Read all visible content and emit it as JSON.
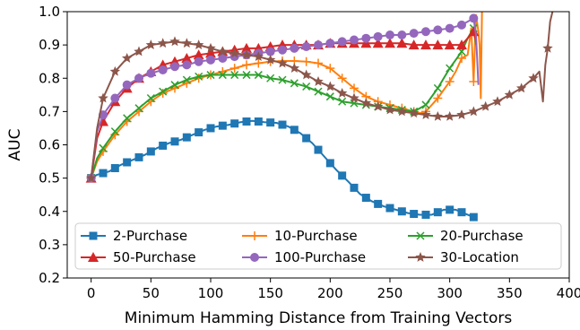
{
  "chart_data": {
    "type": "line",
    "title": "",
    "xlabel": "Minimum Hamming Distance from Training Vectors",
    "ylabel": "AUC",
    "xlim": [
      -20,
      400
    ],
    "ylim": [
      0.2,
      1.0
    ],
    "xticks": [
      0,
      50,
      100,
      150,
      200,
      250,
      300,
      350,
      400
    ],
    "yticks": [
      0.2,
      0.3,
      0.4,
      0.5,
      0.6,
      0.7,
      0.8,
      0.9,
      1.0
    ],
    "grid": false,
    "legend": {
      "placement": "lower-center",
      "columns": 3
    },
    "series": [
      {
        "name": "2-Purchase",
        "color": "#1f77b4",
        "marker": "square",
        "points": [
          [
            0,
            0.5
          ],
          [
            5,
            0.51
          ],
          [
            15,
            0.52
          ],
          [
            25,
            0.54
          ],
          [
            35,
            0.555
          ],
          [
            45,
            0.57
          ],
          [
            55,
            0.59
          ],
          [
            65,
            0.605
          ],
          [
            75,
            0.615
          ],
          [
            85,
            0.63
          ],
          [
            95,
            0.645
          ],
          [
            105,
            0.655
          ],
          [
            115,
            0.66
          ],
          [
            125,
            0.668
          ],
          [
            135,
            0.672
          ],
          [
            145,
            0.668
          ],
          [
            155,
            0.666
          ],
          [
            165,
            0.655
          ],
          [
            175,
            0.635
          ],
          [
            185,
            0.605
          ],
          [
            195,
            0.565
          ],
          [
            205,
            0.525
          ],
          [
            215,
            0.49
          ],
          [
            225,
            0.452
          ],
          [
            235,
            0.43
          ],
          [
            245,
            0.415
          ],
          [
            255,
            0.405
          ],
          [
            265,
            0.395
          ],
          [
            275,
            0.39
          ],
          [
            285,
            0.39
          ],
          [
            295,
            0.405
          ],
          [
            305,
            0.405
          ],
          [
            315,
            0.39
          ],
          [
            322,
            0.38
          ]
        ],
        "marker_x": [
          0,
          10,
          20,
          30,
          40,
          50,
          60,
          70,
          80,
          90,
          100,
          110,
          120,
          130,
          140,
          150,
          160,
          170,
          180,
          190,
          200,
          210,
          220,
          230,
          240,
          250,
          260,
          270,
          280,
          290,
          300,
          310,
          320
        ]
      },
      {
        "name": "10-Purchase",
        "color": "#ff7f0e",
        "marker": "plus",
        "points": [
          [
            0,
            0.5
          ],
          [
            5,
            0.55
          ],
          [
            10,
            0.58
          ],
          [
            20,
            0.63
          ],
          [
            30,
            0.67
          ],
          [
            40,
            0.7
          ],
          [
            50,
            0.73
          ],
          [
            60,
            0.755
          ],
          [
            70,
            0.77
          ],
          [
            80,
            0.785
          ],
          [
            90,
            0.8
          ],
          [
            100,
            0.81
          ],
          [
            110,
            0.82
          ],
          [
            120,
            0.83
          ],
          [
            130,
            0.84
          ],
          [
            140,
            0.845
          ],
          [
            150,
            0.85
          ],
          [
            160,
            0.852
          ],
          [
            170,
            0.852
          ],
          [
            180,
            0.85
          ],
          [
            190,
            0.845
          ],
          [
            200,
            0.83
          ],
          [
            210,
            0.8
          ],
          [
            220,
            0.77
          ],
          [
            230,
            0.745
          ],
          [
            240,
            0.73
          ],
          [
            250,
            0.72
          ],
          [
            260,
            0.71
          ],
          [
            270,
            0.7
          ],
          [
            275,
            0.695
          ],
          [
            280,
            0.7
          ],
          [
            290,
            0.74
          ],
          [
            300,
            0.79
          ],
          [
            305,
            0.82
          ],
          [
            310,
            0.86
          ],
          [
            315,
            0.87
          ],
          [
            318,
            0.95
          ],
          [
            320,
            0.79
          ],
          [
            322,
            0.99
          ],
          [
            324,
            0.94
          ],
          [
            325,
            0.9
          ],
          [
            326,
            0.74
          ],
          [
            327,
            1.0
          ]
        ],
        "marker_x": [
          0,
          10,
          20,
          30,
          40,
          50,
          60,
          70,
          80,
          90,
          100,
          110,
          120,
          130,
          140,
          150,
          160,
          170,
          180,
          190,
          200,
          210,
          220,
          230,
          240,
          250,
          260,
          270,
          280,
          290,
          300,
          310,
          320
        ]
      },
      {
        "name": "20-Purchase",
        "color": "#2ca02c",
        "marker": "x",
        "points": [
          [
            0,
            0.5
          ],
          [
            5,
            0.56
          ],
          [
            10,
            0.59
          ],
          [
            20,
            0.64
          ],
          [
            30,
            0.68
          ],
          [
            40,
            0.71
          ],
          [
            50,
            0.74
          ],
          [
            60,
            0.76
          ],
          [
            70,
            0.78
          ],
          [
            80,
            0.795
          ],
          [
            90,
            0.805
          ],
          [
            100,
            0.81
          ],
          [
            110,
            0.81
          ],
          [
            120,
            0.81
          ],
          [
            130,
            0.81
          ],
          [
            140,
            0.81
          ],
          [
            150,
            0.8
          ],
          [
            160,
            0.795
          ],
          [
            170,
            0.785
          ],
          [
            180,
            0.775
          ],
          [
            190,
            0.76
          ],
          [
            200,
            0.745
          ],
          [
            210,
            0.73
          ],
          [
            220,
            0.725
          ],
          [
            230,
            0.72
          ],
          [
            240,
            0.715
          ],
          [
            250,
            0.71
          ],
          [
            260,
            0.705
          ],
          [
            270,
            0.7
          ],
          [
            280,
            0.72
          ],
          [
            290,
            0.77
          ],
          [
            300,
            0.83
          ],
          [
            310,
            0.88
          ],
          [
            315,
            0.92
          ],
          [
            320,
            0.95
          ],
          [
            322,
            0.9
          ]
        ],
        "marker_x": [
          0,
          10,
          20,
          30,
          40,
          50,
          60,
          70,
          80,
          90,
          100,
          110,
          120,
          130,
          140,
          150,
          160,
          170,
          180,
          190,
          200,
          210,
          220,
          230,
          240,
          250,
          260,
          270,
          280,
          290,
          300,
          310,
          320
        ]
      },
      {
        "name": "50-Purchase",
        "color": "#d62728",
        "marker": "triangle",
        "points": [
          [
            0,
            0.5
          ],
          [
            5,
            0.62
          ],
          [
            10,
            0.67
          ],
          [
            20,
            0.73
          ],
          [
            30,
            0.77
          ],
          [
            40,
            0.8
          ],
          [
            50,
            0.82
          ],
          [
            60,
            0.84
          ],
          [
            70,
            0.85
          ],
          [
            80,
            0.86
          ],
          [
            90,
            0.87
          ],
          [
            100,
            0.875
          ],
          [
            110,
            0.88
          ],
          [
            120,
            0.885
          ],
          [
            130,
            0.89
          ],
          [
            140,
            0.89
          ],
          [
            150,
            0.895
          ],
          [
            160,
            0.9
          ],
          [
            170,
            0.9
          ],
          [
            180,
            0.9
          ],
          [
            190,
            0.9
          ],
          [
            200,
            0.905
          ],
          [
            210,
            0.905
          ],
          [
            220,
            0.905
          ],
          [
            230,
            0.905
          ],
          [
            240,
            0.905
          ],
          [
            250,
            0.905
          ],
          [
            260,
            0.905
          ],
          [
            270,
            0.9
          ],
          [
            280,
            0.9
          ],
          [
            290,
            0.9
          ],
          [
            300,
            0.9
          ],
          [
            310,
            0.9
          ],
          [
            315,
            0.92
          ],
          [
            320,
            0.94
          ],
          [
            322,
            0.91
          ]
        ],
        "marker_x": [
          0,
          10,
          20,
          30,
          40,
          50,
          60,
          70,
          80,
          90,
          100,
          110,
          120,
          130,
          140,
          150,
          160,
          170,
          180,
          190,
          200,
          210,
          220,
          230,
          240,
          250,
          260,
          270,
          280,
          290,
          300,
          310,
          320
        ]
      },
      {
        "name": "100-Purchase",
        "color": "#9467bd",
        "marker": "circle",
        "points": [
          [
            0,
            0.5
          ],
          [
            5,
            0.64
          ],
          [
            10,
            0.69
          ],
          [
            20,
            0.74
          ],
          [
            30,
            0.78
          ],
          [
            40,
            0.8
          ],
          [
            50,
            0.815
          ],
          [
            60,
            0.825
          ],
          [
            70,
            0.835
          ],
          [
            80,
            0.84
          ],
          [
            90,
            0.85
          ],
          [
            100,
            0.855
          ],
          [
            110,
            0.86
          ],
          [
            120,
            0.865
          ],
          [
            130,
            0.87
          ],
          [
            140,
            0.875
          ],
          [
            150,
            0.88
          ],
          [
            160,
            0.885
          ],
          [
            170,
            0.89
          ],
          [
            180,
            0.895
          ],
          [
            190,
            0.9
          ],
          [
            200,
            0.905
          ],
          [
            210,
            0.91
          ],
          [
            220,
            0.915
          ],
          [
            230,
            0.92
          ],
          [
            240,
            0.925
          ],
          [
            250,
            0.93
          ],
          [
            260,
            0.93
          ],
          [
            270,
            0.935
          ],
          [
            280,
            0.94
          ],
          [
            290,
            0.945
          ],
          [
            300,
            0.95
          ],
          [
            310,
            0.96
          ],
          [
            320,
            0.98
          ],
          [
            322,
            0.93
          ],
          [
            324,
            0.78
          ]
        ],
        "marker_x": [
          0,
          10,
          20,
          30,
          40,
          50,
          60,
          70,
          80,
          90,
          100,
          110,
          120,
          130,
          140,
          150,
          160,
          170,
          180,
          190,
          200,
          210,
          220,
          230,
          240,
          250,
          260,
          270,
          280,
          290,
          300,
          310,
          320
        ]
      },
      {
        "name": "30-Location",
        "color": "#8c564b",
        "marker": "star",
        "points": [
          [
            0,
            0.5
          ],
          [
            5,
            0.65
          ],
          [
            10,
            0.74
          ],
          [
            20,
            0.82
          ],
          [
            30,
            0.86
          ],
          [
            40,
            0.88
          ],
          [
            50,
            0.9
          ],
          [
            60,
            0.905
          ],
          [
            70,
            0.91
          ],
          [
            80,
            0.905
          ],
          [
            90,
            0.9
          ],
          [
            100,
            0.89
          ],
          [
            110,
            0.88
          ],
          [
            120,
            0.875
          ],
          [
            130,
            0.87
          ],
          [
            140,
            0.865
          ],
          [
            150,
            0.855
          ],
          [
            160,
            0.845
          ],
          [
            170,
            0.83
          ],
          [
            180,
            0.81
          ],
          [
            190,
            0.79
          ],
          [
            200,
            0.775
          ],
          [
            210,
            0.755
          ],
          [
            220,
            0.74
          ],
          [
            230,
            0.725
          ],
          [
            240,
            0.715
          ],
          [
            250,
            0.705
          ],
          [
            260,
            0.7
          ],
          [
            270,
            0.695
          ],
          [
            280,
            0.69
          ],
          [
            290,
            0.685
          ],
          [
            300,
            0.685
          ],
          [
            310,
            0.69
          ],
          [
            320,
            0.7
          ],
          [
            330,
            0.715
          ],
          [
            340,
            0.73
          ],
          [
            350,
            0.75
          ],
          [
            360,
            0.77
          ],
          [
            370,
            0.8
          ],
          [
            375,
            0.82
          ],
          [
            378,
            0.73
          ],
          [
            380,
            0.84
          ],
          [
            382,
            0.89
          ],
          [
            384,
            0.97
          ],
          [
            386,
            1.0
          ]
        ],
        "marker_x": [
          0,
          10,
          20,
          30,
          40,
          50,
          60,
          70,
          80,
          90,
          100,
          110,
          120,
          130,
          140,
          150,
          160,
          170,
          180,
          190,
          200,
          210,
          220,
          230,
          240,
          250,
          260,
          270,
          280,
          290,
          300,
          310,
          320,
          330,
          340,
          350,
          360,
          370,
          382
        ]
      }
    ]
  }
}
